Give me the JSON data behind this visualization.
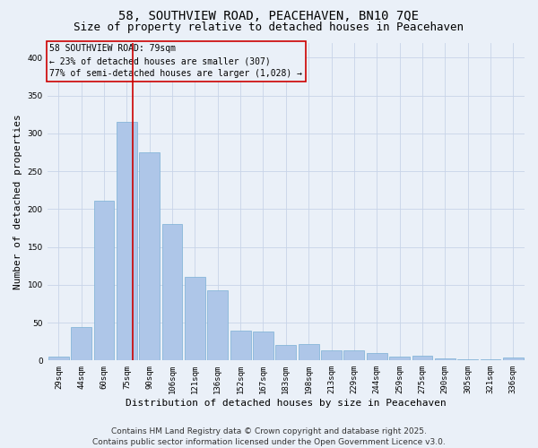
{
  "title_line1": "58, SOUTHVIEW ROAD, PEACEHAVEN, BN10 7QE",
  "title_line2": "Size of property relative to detached houses in Peacehaven",
  "xlabel": "Distribution of detached houses by size in Peacehaven",
  "ylabel": "Number of detached properties",
  "categories": [
    "29sqm",
    "44sqm",
    "60sqm",
    "75sqm",
    "90sqm",
    "106sqm",
    "121sqm",
    "136sqm",
    "152sqm",
    "167sqm",
    "183sqm",
    "198sqm",
    "213sqm",
    "229sqm",
    "244sqm",
    "259sqm",
    "275sqm",
    "290sqm",
    "305sqm",
    "321sqm",
    "336sqm"
  ],
  "values": [
    5,
    44,
    211,
    315,
    275,
    180,
    110,
    93,
    40,
    38,
    21,
    22,
    14,
    13,
    10,
    5,
    6,
    3,
    2,
    1,
    4
  ],
  "bar_color": "#aec6e8",
  "bar_edge_color": "#7aafd4",
  "grid_color": "#c8d4e8",
  "background_color": "#eaf0f8",
  "vline_color": "#cc0000",
  "annotation_line1": "58 SOUTHVIEW ROAD: 79sqm",
  "annotation_line2": "← 23% of detached houses are smaller (307)",
  "annotation_line3": "77% of semi-detached houses are larger (1,028) →",
  "annotation_box_color": "#cc0000",
  "footer_line1": "Contains HM Land Registry data © Crown copyright and database right 2025.",
  "footer_line2": "Contains public sector information licensed under the Open Government Licence v3.0.",
  "ylim": [
    0,
    420
  ],
  "yticks": [
    0,
    50,
    100,
    150,
    200,
    250,
    300,
    350,
    400
  ],
  "title_fontsize": 10,
  "subtitle_fontsize": 9,
  "tick_fontsize": 6.5,
  "label_fontsize": 8,
  "annotation_fontsize": 7,
  "footer_fontsize": 6.5
}
